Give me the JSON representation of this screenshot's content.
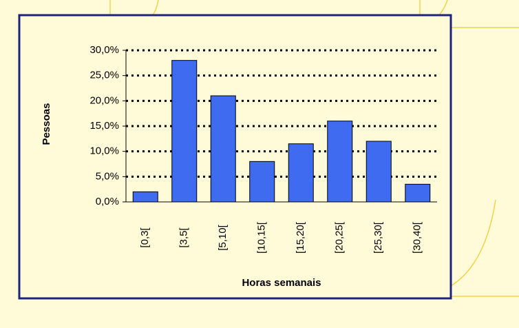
{
  "chart_data": {
    "type": "bar",
    "categories": [
      "[0,3[",
      "[3,5[",
      "[5,10[",
      "[10,15[",
      "[15,20[",
      "[20,25[",
      "[25,30[",
      "[30,40["
    ],
    "values": [
      2,
      28,
      21,
      8,
      11.5,
      16,
      12,
      3.5
    ],
    "color": "#3f6bf0",
    "x_label": "Horas semanais",
    "y_label": "Pessoas",
    "ylim": [
      0,
      30
    ],
    "yticks": [
      {
        "value": 0,
        "label": "0,0%"
      },
      {
        "value": 5,
        "label": "5,0%"
      },
      {
        "value": 10,
        "label": "10,0%"
      },
      {
        "value": 15,
        "label": "15,0%"
      },
      {
        "value": 20,
        "label": "20,0%"
      },
      {
        "value": 25,
        "label": "25,0%"
      },
      {
        "value": 30,
        "label": "30,0%"
      }
    ],
    "grid": true
  }
}
